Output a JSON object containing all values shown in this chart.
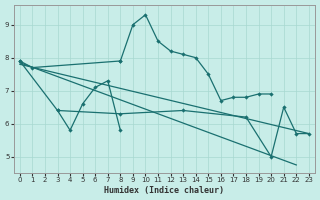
{
  "bg_color": "#c8ede8",
  "line_color": "#1a7070",
  "grid_color": "#a8d8d0",
  "xlabel": "Humidex (Indice chaleur)",
  "xlim_min": -0.5,
  "xlim_max": 23.5,
  "ylim_min": 4.5,
  "ylim_max": 9.6,
  "yticks": [
    5,
    6,
    7,
    8,
    9
  ],
  "xticks": [
    0,
    1,
    2,
    3,
    4,
    5,
    6,
    7,
    8,
    9,
    10,
    11,
    12,
    13,
    14,
    15,
    16,
    17,
    18,
    19,
    20,
    21,
    22,
    23
  ],
  "lines": [
    {
      "x": [
        0,
        1,
        8
      ],
      "y": [
        7.9,
        7.7,
        7.9
      ],
      "marker": true
    },
    {
      "x": [
        3,
        4,
        5,
        6,
        7,
        8
      ],
      "y": [
        6.4,
        5.8,
        6.6,
        7.1,
        7.3,
        5.8
      ],
      "marker": true
    },
    {
      "x": [
        8,
        9,
        10,
        11,
        12,
        13,
        14,
        15,
        16,
        17,
        18,
        19,
        20
      ],
      "y": [
        7.9,
        9.0,
        9.3,
        8.5,
        8.2,
        8.1,
        8.0,
        7.5,
        6.7,
        6.8,
        6.8,
        6.9,
        6.9
      ],
      "marker": true
    },
    {
      "x": [
        0,
        3,
        8,
        13,
        18,
        20,
        21,
        22,
        23
      ],
      "y": [
        7.9,
        6.4,
        6.3,
        6.4,
        6.2,
        5.0,
        6.5,
        5.7,
        5.7
      ],
      "marker": true
    },
    {
      "x": [
        0,
        23
      ],
      "y": [
        7.8,
        5.7
      ],
      "marker": false
    },
    {
      "x": [
        0,
        22
      ],
      "y": [
        7.85,
        4.75
      ],
      "marker": false
    }
  ]
}
